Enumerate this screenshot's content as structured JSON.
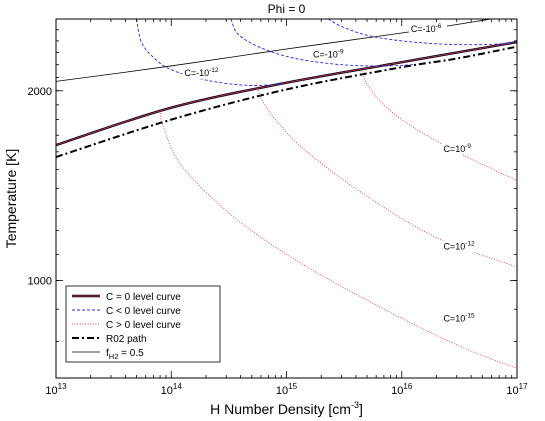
{
  "chart_data": {
    "type": "line",
    "title": "Phi = 0",
    "xlabel": "H Number Density [cm",
    "xlabel_sup": "-3",
    "xlabel_close": "]",
    "ylabel": "Temperature [K]",
    "xscale": "log",
    "yscale": "log",
    "xlim": [
      10000000000000.0,
      1e+17
    ],
    "ylim": [
      700,
      2600
    ],
    "x_ticks": [
      {
        "v": 10000000000000.0,
        "base": "10",
        "exp": "13"
      },
      {
        "v": 100000000000000.0,
        "base": "10",
        "exp": "14"
      },
      {
        "v": 1000000000000000.0,
        "base": "10",
        "exp": "15"
      },
      {
        "v": 1e+16,
        "base": "10",
        "exp": "16"
      },
      {
        "v": 1e+17,
        "base": "10",
        "exp": "17"
      }
    ],
    "y_ticks": [
      {
        "v": 1000,
        "label": "1000"
      },
      {
        "v": 2000,
        "label": "2000"
      }
    ],
    "legend_position": "bottom-left",
    "legend": [
      {
        "label": "C = 0 level curve",
        "style": "thick-solid"
      },
      {
        "label": "C < 0 level curve",
        "style": "blue-dashed"
      },
      {
        "label": "C > 0 level curve",
        "style": "red-dotted"
      },
      {
        "label": "R02 path",
        "style": "dash-dot"
      },
      {
        "label": "f",
        "sub": "H2",
        "rest": " = 0.5",
        "style": "thin-solid"
      }
    ],
    "colors": {
      "c_zero": "#000000",
      "c_neg": "#2a2ad8",
      "c_pos": "#e04040",
      "c_zero_inner": "#b0306a"
    },
    "series": [
      {
        "key": "czero",
        "style": "thick-solid",
        "x": [
          10000000000000.0,
          100000000000000.0,
          1000000000000000.0,
          1e+16,
          1e+17
        ],
        "y": [
          1640,
          1880,
          2060,
          2220,
          2390
        ]
      },
      {
        "key": "r02",
        "style": "dash-dot",
        "x": [
          10000000000000.0,
          100000000000000.0,
          1000000000000000.0,
          1e+16,
          3e+16,
          1e+17
        ],
        "y": [
          1570,
          1800,
          2010,
          2180,
          2250,
          2350
        ]
      },
      {
        "key": "fh2",
        "style": "thin-solid",
        "x": [
          10000000000000.0,
          100000000000000.0,
          1000000000000000.0,
          1e+16,
          6e+16
        ],
        "y": [
          2070,
          2190,
          2330,
          2470,
          2600
        ]
      },
      {
        "key": "cneg1",
        "style": "blue-dashed",
        "label_base": "C=-10",
        "label_exp": "-12",
        "label_at": [
          130000000000000.0,
          2110
        ],
        "x": [
          50000000000000.0,
          55000000000000.0,
          70000000000000.0,
          100000000000000.0,
          200000000000000.0,
          450000000000000.0,
          950000000000000.0
        ],
        "y": [
          2600,
          2390,
          2260,
          2160,
          2080,
          2040,
          2050
        ]
      },
      {
        "key": "cneg2",
        "style": "blue-dashed",
        "label_base": "C=-10",
        "label_exp": "-9",
        "label_at": [
          1700000000000000.0,
          2260
        ],
        "x": [
          330000000000000.0,
          380000000000000.0,
          600000000000000.0,
          1200000000000000.0,
          3000000000000000.0,
          7000000000000000.0,
          1.25e+16
        ],
        "y": [
          2600,
          2460,
          2340,
          2250,
          2200,
          2190,
          2200
        ]
      },
      {
        "key": "cneg3",
        "style": "blue-dashed",
        "label_base": "C=-10",
        "label_exp": "-6",
        "label_at": [
          1.2e+16,
          2480
        ],
        "x": [
          2300000000000000.0,
          3000000000000000.0,
          5000000000000000.0,
          1e+16,
          2.5e+16,
          6e+16,
          1e+17
        ],
        "y": [
          2600,
          2530,
          2450,
          2400,
          2370,
          2370,
          2390
        ]
      },
      {
        "key": "cpos1",
        "style": "red-dotted",
        "label_base": "C=10",
        "label_exp": "-9",
        "label_at": [
          2.3e+16,
          1600
        ],
        "x": [
          4500000000000000.0,
          5000000000000000.0,
          7000000000000000.0,
          1.2e+16,
          3e+16,
          1e+17
        ],
        "y": [
          2150,
          2050,
          1900,
          1760,
          1600,
          1440
        ]
      },
      {
        "key": "cpos2",
        "style": "red-dotted",
        "label_base": "C=10",
        "label_exp": "-12",
        "label_at": [
          2.3e+16,
          1120
        ],
        "x": [
          550000000000000.0,
          600000000000000.0,
          800000000000000.0,
          1500000000000000.0,
          5000000000000000.0,
          2e+16,
          1e+17
        ],
        "y": [
          2060,
          1950,
          1800,
          1600,
          1360,
          1170,
          1050
        ]
      },
      {
        "key": "cpos3",
        "style": "red-dotted",
        "label_base": "C=10",
        "label_exp": "-15",
        "label_at": [
          2.3e+16,
          860
        ],
        "x": [
          80000000000000.0,
          85000000000000.0,
          120000000000000.0,
          300000000000000.0,
          1000000000000000.0,
          5000000000000000.0,
          3e+16,
          1e+17
        ],
        "y": [
          1860,
          1760,
          1530,
          1290,
          1100,
          930,
          790,
          725
        ]
      }
    ]
  }
}
